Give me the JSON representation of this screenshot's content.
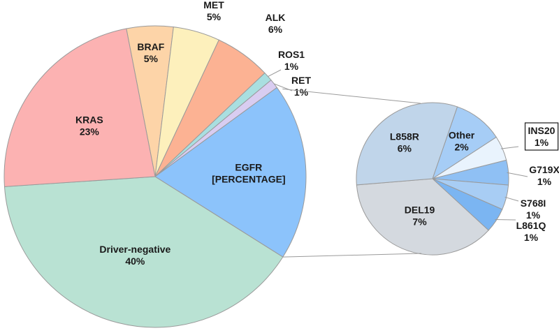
{
  "chart_data": [
    {
      "type": "pie",
      "unit": "%",
      "slices": [
        {
          "label": "BRAF",
          "value": 5,
          "color": "#fdd4a8"
        },
        {
          "label": "MET",
          "value": 5,
          "color": "#fdf0bc"
        },
        {
          "label": "ALK",
          "value": 6,
          "color": "#fcb293"
        },
        {
          "label": "ROS1",
          "value": 1,
          "color": "#a9dfe0"
        },
        {
          "label": "RET",
          "value": 1,
          "color": "#d9cdf1"
        },
        {
          "label": "EGFR",
          "value": 19,
          "value_text": "[PERCENTAGE]",
          "color": "#8cc3fb"
        },
        {
          "label": "Driver-negative",
          "value": 40,
          "color": "#b9e2d3"
        },
        {
          "label": "KRAS",
          "value": 23,
          "color": "#fcb2b2"
        }
      ]
    },
    {
      "type": "pie",
      "unit": "%",
      "breakdown_of": "EGFR",
      "slices": [
        {
          "label": "Other",
          "value": 2,
          "color": "#a6cdf6"
        },
        {
          "label": "INS20",
          "value": 1,
          "color": "#e9f3fd",
          "boxed": true
        },
        {
          "label": "G719X",
          "value": 1,
          "color": "#8fc0f4"
        },
        {
          "label": "S768I",
          "value": 1,
          "color": "#a8cdf4"
        },
        {
          "label": "L861Q",
          "value": 1,
          "color": "#7bb5f2"
        },
        {
          "label": "DEL19",
          "value": 7,
          "color": "#d4d9df"
        },
        {
          "label": "L858R",
          "value": 6,
          "color": "#c0d5ea"
        }
      ]
    }
  ]
}
